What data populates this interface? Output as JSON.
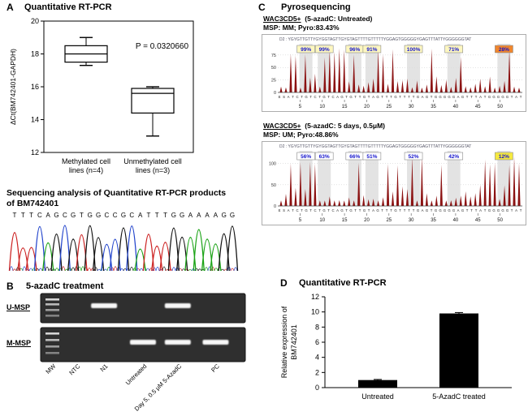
{
  "panelA": {
    "label": "A",
    "title": "Quantitative RT-PCR",
    "seq_title_line1": "Sequencing analysis of Quantitative RT-PCR products",
    "seq_title_line2": "of BM742401"
  },
  "panelB": {
    "label": "B",
    "title": "5-azadC treatment"
  },
  "panelC": {
    "label": "C",
    "title": "Pyrosequencing"
  },
  "panelD": {
    "label": "D",
    "title": "Quantitative RT-PCR"
  },
  "chart_data": [
    {
      "id": "dct-boxplot",
      "type": "box",
      "panel": "A",
      "title": "Quantitative RT-PCR",
      "ylabel": "ΔCt(BM742401-GAPDH)",
      "ylim": [
        12,
        20
      ],
      "yticks": [
        12,
        14,
        16,
        18,
        20
      ],
      "annotation": "P = 0.0320660",
      "categories": [
        [
          "Methylated cell",
          "lines (n=4)"
        ],
        [
          "Unmethylated cell",
          "lines (n=3)"
        ]
      ],
      "boxes": [
        {
          "whisker_low": 17.3,
          "q1": 17.5,
          "median": 18.0,
          "q3": 18.5,
          "whisker_high": 19.0
        },
        {
          "whisker_low": 13.0,
          "q1": 14.4,
          "median": 15.6,
          "q3": 15.9,
          "whisker_high": 16.0
        }
      ]
    },
    {
      "id": "sanger-chromatogram",
      "type": "chromatogram",
      "panel": "A",
      "sequence": "TTTCAGCGTGGCCGCATTTGGAAAAGG",
      "base_colors": {
        "A": "#1aa315",
        "C": "#2244cc",
        "G": "#111111",
        "T": "#cc2222"
      }
    },
    {
      "id": "msp-gels",
      "type": "gel",
      "panel": "B",
      "lanes": [
        "MW",
        "NTC",
        "N1",
        "Untreated",
        "Day 5, 0.5 μM 5-AzadC",
        "PC"
      ],
      "rows": [
        {
          "name": "U-MSP",
          "bands": [
            0,
            0,
            1,
            0,
            1,
            0
          ]
        },
        {
          "name": "M-MSP",
          "bands": [
            0,
            0,
            0,
            1,
            1,
            1
          ]
        }
      ]
    },
    {
      "id": "pyro-untreated",
      "type": "pyrogram",
      "panel": "C",
      "sample": "WAC3CD5+",
      "condition": "(5-azadC: Untreated)",
      "msp_line": "MSP: MM; Pyro:83.43%",
      "dispensation": "D2 : YGYGTTGTTYGYGGTAGTTGYGTAGTTTTGTTTTTYGGAGTGGGGGYGAGTTTATTYGGGGGGTAT",
      "cpg_percents": [
        "99%",
        "99%",
        "96%",
        "91%",
        "100%",
        "71%",
        "28%"
      ],
      "cpg_positions": [
        0.115,
        0.19,
        0.315,
        0.385,
        0.555,
        0.72,
        0.925
      ],
      "highlight_index": 6,
      "highlight_color": "#f0862c",
      "box_bg": "#fdf7c0",
      "peak_color": "#8b1111",
      "yticks": [
        0,
        25,
        50,
        75
      ],
      "x_sequence": "ESATCTGTCTGTCAGTGTTGTAGTTTGTTTTGAGTGGGGGAGTTTATGGGGGTAT",
      "xticks": [
        5,
        10,
        15,
        20,
        25,
        30,
        35,
        40,
        45,
        50
      ]
    },
    {
      "id": "pyro-treated",
      "type": "pyrogram",
      "panel": "C",
      "sample": "WAC3CD5+",
      "condition": "(5-azadC: 5 days, 0.5μM)",
      "msp_line": "MSP: UM; Pyro:48.86%",
      "dispensation": "D2 : YGYGTTGTTYGYGGTAGTTGYGTAGTTTTGTTTTTYGGAGTGGGGGYGAGTTTATTYGGGGGGTAT",
      "cpg_percents": [
        "56%",
        "63%",
        "66%",
        "51%",
        "52%",
        "42%",
        "12%"
      ],
      "cpg_positions": [
        0.115,
        0.19,
        0.315,
        0.385,
        0.555,
        0.72,
        0.925
      ],
      "highlight_index": 6,
      "highlight_color": "#f5e93f",
      "box_bg": "#ffffff",
      "peak_color": "#8b1111",
      "yticks": [
        0,
        50,
        100
      ],
      "x_sequence": "ESATCTGTCTGTCAGTGTTGTAGTTTGTTTTGAGTGGGGGAGTTTATGGGGGTAT",
      "xticks": [
        5,
        10,
        15,
        20,
        25,
        30,
        35,
        40,
        45,
        50
      ]
    },
    {
      "id": "expression-bar",
      "type": "bar",
      "panel": "D",
      "title": "Quantitative RT-PCR",
      "ylabel": [
        "Relative expression of",
        "BM742401"
      ],
      "ylim": [
        0,
        12
      ],
      "yticks": [
        0,
        2,
        4,
        6,
        8,
        10,
        12
      ],
      "categories": [
        "Untreated",
        "5-AzadC treated"
      ],
      "values": [
        1.0,
        9.8
      ],
      "errors": [
        0.08,
        0.12
      ],
      "bar_color": "#000000"
    }
  ]
}
